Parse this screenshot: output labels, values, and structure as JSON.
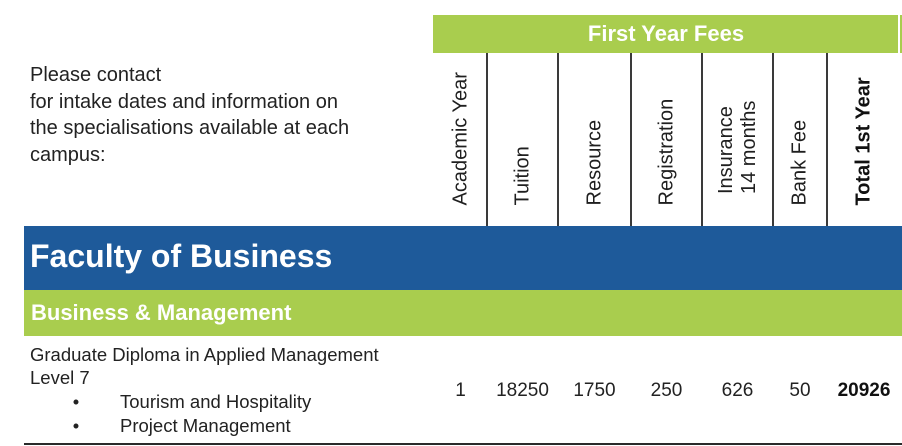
{
  "intro_text": "Please contact\nfor intake dates and information on\nthe specialisations available at each\ncampus:",
  "fees_header": "First Year Fees",
  "columns": [
    "Academic Year",
    "Tuition",
    "Resource",
    "Registration",
    "Insurance\n14 months",
    "Bank Fee",
    "Total 1st Year"
  ],
  "faculty": "Faculty of Business",
  "department": "Business & Management",
  "programme": {
    "title_line1": "Graduate Diploma in Applied Management",
    "title_line2": "Level 7",
    "specialisations": [
      "Tourism and Hospitality",
      "Project Management"
    ],
    "bullet": "•",
    "values": {
      "academic_year": "1",
      "tuition": "18250",
      "resource": "1750",
      "registration": "250",
      "insurance": "626",
      "bank_fee": "50",
      "total": "20926"
    }
  },
  "colors": {
    "green": "#a9cd4e",
    "blue": "#1e5a9a"
  }
}
